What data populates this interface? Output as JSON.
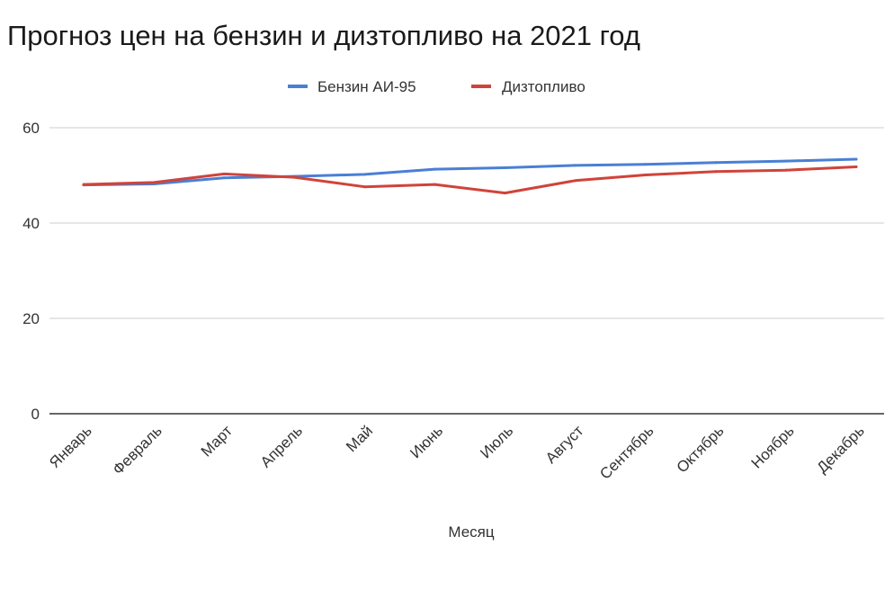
{
  "chart_data": {
    "type": "line",
    "title": "Прогноз цен на бензин и дизтопливо на 2021 год",
    "xlabel": "Месяц",
    "ylabel": "",
    "ylim": [
      0,
      60
    ],
    "yticks": [
      "0",
      "20",
      "40",
      "60"
    ],
    "grid": true,
    "legend_position": "top-center",
    "categories": [
      "Январь",
      "Февраль",
      "Март",
      "Апрель",
      "Май",
      "Июнь",
      "Июль",
      "Август",
      "Сентябрь",
      "Октябрь",
      "Ноябрь",
      "Декабрь"
    ],
    "series": [
      {
        "name": "Бензин АИ-95",
        "color": "#4a7fd4",
        "values": [
          48.0,
          48.2,
          49.5,
          49.8,
          50.2,
          51.3,
          51.6,
          52.1,
          52.3,
          52.7,
          53.0,
          53.4
        ]
      },
      {
        "name": "Дизтопливо",
        "color": "#d0433a",
        "values": [
          48.1,
          48.5,
          50.3,
          49.6,
          47.6,
          48.1,
          46.3,
          48.9,
          50.1,
          50.8,
          51.1,
          51.8
        ]
      }
    ]
  }
}
